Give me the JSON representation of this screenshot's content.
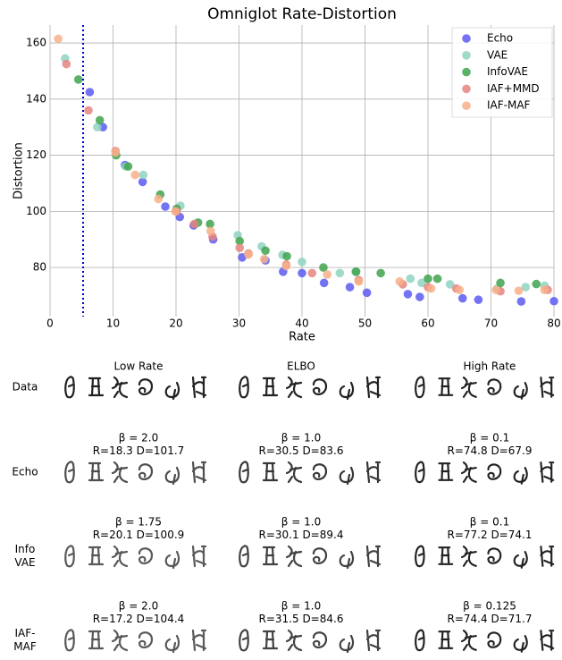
{
  "chart_data": {
    "type": "scatter",
    "title": "Omniglot Rate-Distortion",
    "x_label": "Rate",
    "y_label": "Distortion",
    "xlim": [
      0,
      80
    ],
    "ylim": [
      62.5,
      166.4
    ],
    "xticks": [
      0,
      10,
      20,
      30,
      40,
      50,
      60,
      70,
      80
    ],
    "yticks": [
      80,
      100,
      120,
      140,
      160
    ],
    "grid": true,
    "legend": "upper right",
    "vline_x": 5.25,
    "vline_color": "#0000cc",
    "series": [
      {
        "name": "Echo",
        "color": "#5b5bf2",
        "x": [
          6.3,
          8.4,
          11.9,
          14.7,
          18.3,
          20.6,
          22.8,
          25.9,
          30.5,
          34.2,
          37,
          40,
          43.5,
          47.6,
          50.3,
          56.8,
          58.7,
          65.5,
          68,
          74.8,
          80
        ],
        "values": [
          142.5,
          130,
          116.5,
          110.5,
          101.7,
          98,
          95,
          90,
          83.6,
          82.5,
          78.5,
          78,
          74.5,
          73,
          71,
          70.5,
          69.5,
          69,
          68.5,
          67.9,
          68
        ]
      },
      {
        "name": "VAE",
        "color": "#8fd3c1",
        "x": [
          2.4,
          7.5,
          12,
          14.8,
          20.7,
          29.8,
          33.6,
          36.9,
          40,
          46,
          48.5,
          57.2,
          59,
          63.5,
          71,
          75.5,
          78.5
        ],
        "values": [
          154.5,
          130,
          116,
          113,
          102,
          91.5,
          87.5,
          84.5,
          82,
          78,
          78.5,
          76,
          74.5,
          74,
          72.5,
          73,
          73.5
        ]
      },
      {
        "name": "InfoVAE",
        "color": "#3fa34d",
        "x": [
          4.5,
          7.9,
          10.5,
          12.4,
          17.5,
          20.1,
          23.5,
          25.4,
          30.1,
          34.2,
          37.6,
          43.4,
          48.6,
          52.5,
          60,
          61.5,
          71.5,
          77.2
        ],
        "values": [
          147,
          132.5,
          120,
          116,
          106,
          100.9,
          96,
          95.5,
          89.4,
          86,
          84,
          80,
          78.5,
          78,
          76,
          76,
          74.5,
          74.1
        ]
      },
      {
        "name": "IAF+MMD",
        "color": "#e6847f",
        "x": [
          2.6,
          6.1,
          10.4,
          20.1,
          22.9,
          25.8,
          30.1,
          31.5,
          37.5,
          41.6,
          49,
          56,
          60,
          64.5,
          71.5,
          79
        ],
        "values": [
          152.5,
          136,
          121.5,
          100,
          95.5,
          91,
          87,
          85,
          81,
          78,
          75.5,
          74,
          73,
          72.5,
          71.5,
          72
        ]
      },
      {
        "name": "IAF-MAF",
        "color": "#f7b08a",
        "x": [
          1.3,
          10.4,
          13.5,
          17.2,
          19.9,
          25.5,
          31.5,
          34,
          37.5,
          44,
          49,
          55.5,
          60.5,
          65,
          70.8,
          74.4,
          78.5
        ],
        "values": [
          161.5,
          121,
          113,
          104.4,
          100,
          93,
          84.6,
          83,
          80.5,
          77.5,
          75,
          75,
          72.5,
          72,
          72,
          71.7,
          72
        ]
      }
    ]
  },
  "panel_grid": {
    "columns": [
      "Low Rate",
      "ELBO",
      "High Rate"
    ],
    "rows": [
      {
        "label": [
          "Data"
        ]
      },
      {
        "label": [
          "Echo"
        ],
        "captions": [
          [
            "β = 2.0",
            "R=18.3 D=101.7"
          ],
          [
            "β = 1.0",
            "R=30.5 D=83.6"
          ],
          [
            "β = 0.1",
            "R=74.8 D=67.9"
          ]
        ]
      },
      {
        "label": [
          "Info",
          "VAE"
        ],
        "captions": [
          [
            "β = 1.75",
            "R=20.1 D=100.9"
          ],
          [
            "β = 1.0",
            "R=30.1 D=89.4"
          ],
          [
            "β = 0.1",
            "R=77.2 D=74.1"
          ]
        ]
      },
      {
        "label": [
          "IAF-",
          "MAF"
        ],
        "captions": [
          [
            "β = 2.0",
            "R=17.2 D=104.4"
          ],
          [
            "β = 1.0",
            "R=31.5 D=84.6"
          ],
          [
            "β = 0.125",
            "R=74.4 D=71.7"
          ]
        ]
      }
    ]
  }
}
